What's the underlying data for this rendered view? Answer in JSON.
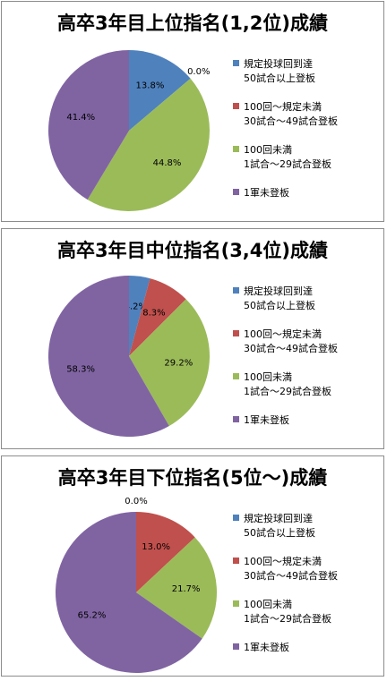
{
  "legend": [
    {
      "line1": "規定投球回到達",
      "line2": "50試合以上登板",
      "color": "#4f81bd"
    },
    {
      "line1": "100回～規定未満",
      "line2": "30試合～49試合登板",
      "color": "#c0504d"
    },
    {
      "line1": "100回未満",
      "line2": "1試合～29試合登板",
      "color": "#9bbb59"
    },
    {
      "line1": "1軍未登板",
      "line2": "",
      "color": "#8064a2"
    }
  ],
  "chart_data": [
    {
      "type": "pie",
      "title": "高卒3年目上位指名(1,2位)成績",
      "categories": [
        "規定投球回到達 50試合以上登板",
        "100回～規定未満 30試合～49試合登板",
        "100回未満 1試合～29試合登板",
        "1軍未登板"
      ],
      "values": [
        13.8,
        0.0,
        44.8,
        41.4
      ],
      "labels": [
        "13.8%",
        "0.0%",
        "44.8%",
        "41.4%"
      ]
    },
    {
      "type": "pie",
      "title": "高卒3年目中位指名(3,4位)成績",
      "categories": [
        "規定投球回到達 50試合以上登板",
        "100回～規定未満 30試合～49試合登板",
        "100回未満 1試合～29試合登板",
        "1軍未登板"
      ],
      "values": [
        4.2,
        8.3,
        29.2,
        58.3
      ],
      "labels": [
        "4.2%",
        "8.3%",
        "29.2%",
        "58.3%"
      ]
    },
    {
      "type": "pie",
      "title": "高卒3年目下位指名(5位～)成績",
      "categories": [
        "規定投球回到達 50試合以上登板",
        "100回～規定未満 30試合～49試合登板",
        "100回未満 1試合～29試合登板",
        "1軍未登板"
      ],
      "values": [
        0.0,
        13.0,
        21.7,
        65.2
      ],
      "labels": [
        "0.0%",
        "13.0%",
        "21.7%",
        "65.2%"
      ]
    }
  ]
}
